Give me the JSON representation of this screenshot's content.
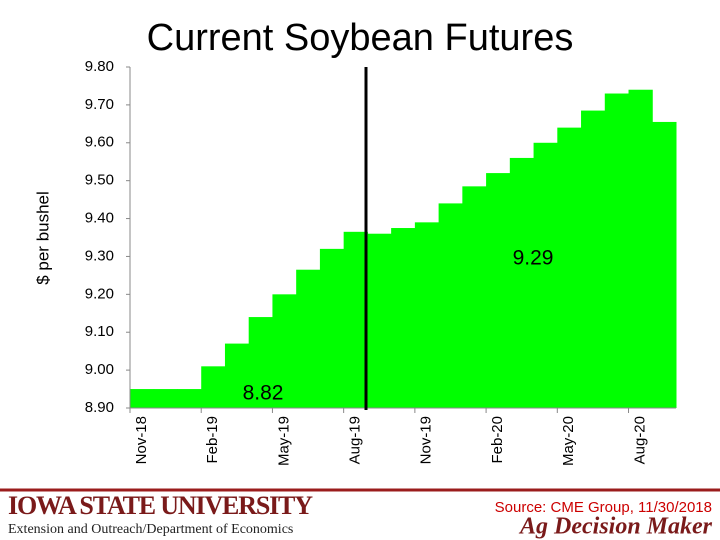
{
  "chart_data": {
    "type": "step-bar",
    "title": "Current Soybean Futures",
    "y_label": "$ per bushel",
    "categories": [
      "Nov-18",
      null,
      null,
      "Feb-19",
      null,
      null,
      "May-19",
      null,
      null,
      "Aug-19",
      null,
      null,
      "Nov-19",
      null,
      null,
      "Feb-20",
      null,
      null,
      "May-20",
      null,
      null,
      "Aug-20",
      null
    ],
    "values": [
      8.95,
      8.95,
      8.95,
      9.01,
      9.07,
      9.14,
      9.2,
      9.265,
      9.32,
      9.365,
      9.36,
      9.375,
      9.39,
      9.44,
      9.485,
      9.52,
      9.56,
      9.6,
      9.64,
      9.685,
      9.73,
      9.74,
      9.655
    ],
    "color": "#00ff00",
    "ylim": [
      8.9,
      9.8
    ],
    "yticks": [
      {
        "value": 8.9,
        "label": "8.90"
      },
      {
        "value": 9.0,
        "label": "9.00"
      },
      {
        "value": 9.1,
        "label": "9.10"
      },
      {
        "value": 9.2,
        "label": "9.20"
      },
      {
        "value": 9.3,
        "label": "9.30"
      },
      {
        "value": 9.4,
        "label": "9.40"
      },
      {
        "value": 9.5,
        "label": "9.50"
      },
      {
        "value": 9.6,
        "label": "9.60"
      },
      {
        "value": 9.7,
        "label": "9.70"
      },
      {
        "value": 9.8,
        "label": "9.80"
      }
    ],
    "annotations": [
      "9.29",
      "8.82"
    ],
    "grid": false
  },
  "footer": {
    "university": "Iowa State University",
    "department": "Extension and Outreach/Department of Economics",
    "source": "Source: CME Group, 11/30/2018",
    "brand": "Ag Decision Maker"
  }
}
